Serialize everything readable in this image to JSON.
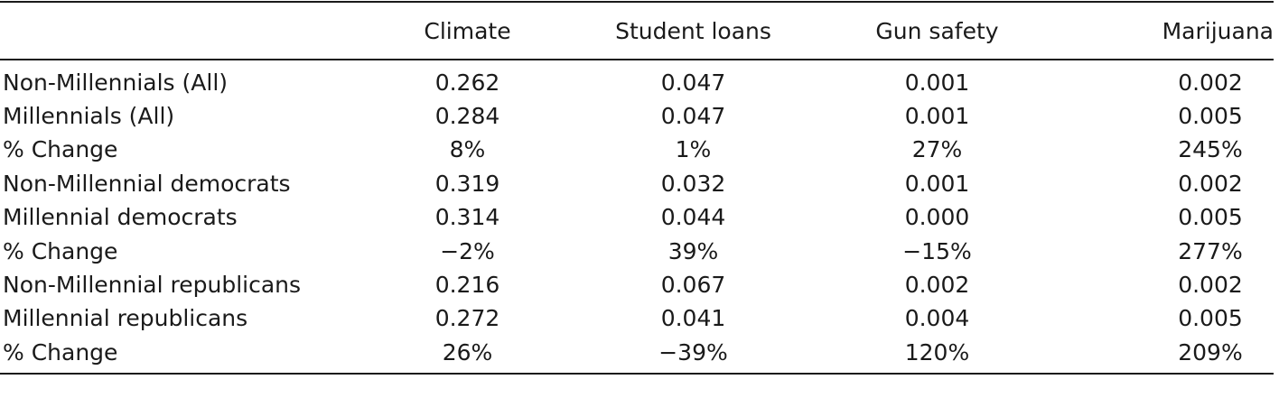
{
  "table": {
    "columns": [
      "",
      "Climate",
      "Student loans",
      "Gun safety",
      "Marijuana"
    ],
    "rows": [
      {
        "label": "Non-Millennials (All)",
        "values": [
          "0.262",
          "0.047",
          "0.001",
          "0.002"
        ]
      },
      {
        "label": "Millennials (All)",
        "values": [
          "0.284",
          "0.047",
          "0.001",
          "0.005"
        ]
      },
      {
        "label": "% Change",
        "values": [
          "8%",
          "1%",
          "27%",
          "245%"
        ]
      },
      {
        "label": "Non-Millennial democrats",
        "values": [
          "0.319",
          "0.032",
          "0.001",
          "0.002"
        ]
      },
      {
        "label": "Millennial democrats",
        "values": [
          "0.314",
          "0.044",
          "0.000",
          "0.005"
        ]
      },
      {
        "label": "% Change",
        "values": [
          "−2%",
          "39%",
          "−15%",
          "277%"
        ]
      },
      {
        "label": "Non-Millennial republicans",
        "values": [
          "0.216",
          "0.067",
          "0.002",
          "0.002"
        ]
      },
      {
        "label": "Millennial republicans",
        "values": [
          "0.272",
          "0.041",
          "0.004",
          "0.005"
        ]
      },
      {
        "label": "% Change",
        "values": [
          "26%",
          "−39%",
          "120%",
          "209%"
        ]
      }
    ]
  }
}
